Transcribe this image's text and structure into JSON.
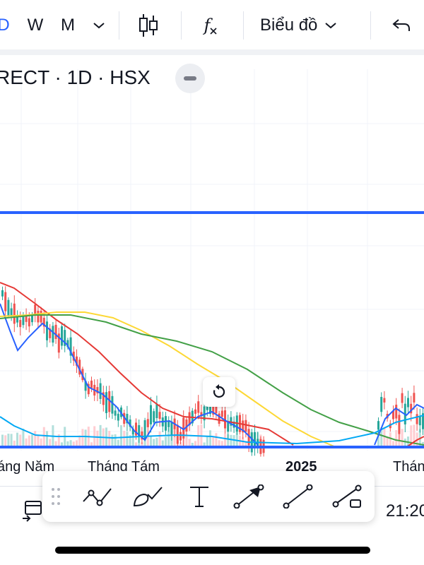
{
  "toolbar": {
    "interval_d": "D",
    "interval_w": "W",
    "interval_m": "M",
    "more_icon": "chevron-down-icon",
    "candles_icon": "candlestick-icon",
    "indicators_icon": "function-icon",
    "indicators_label": "f",
    "chart_type_label": "Biểu đồ",
    "undo_icon": "undo-icon",
    "active_color": "#2962ff"
  },
  "legend": {
    "symbol_text": "RECT · 1D · HSX"
  },
  "chart_data": {
    "type": "candlestick",
    "x_tick_labels": [
      "áng Năm",
      "Tháng Tám",
      "2025",
      "Thán"
    ],
    "horizontal_lines": [
      {
        "color": "#2962ff"
      },
      {
        "color": "#2962ff"
      }
    ],
    "series": [
      {
        "color": "#e53935",
        "kind": "moving-average"
      },
      {
        "color": "#2962ff",
        "kind": "moving-average"
      },
      {
        "color": "#fdd835",
        "kind": "moving-average"
      },
      {
        "color": "#43a047",
        "kind": "moving-average"
      },
      {
        "color": "#03a9f4",
        "kind": "volume-average"
      }
    ],
    "candle_up_color": "#26a69a",
    "candle_down_color": "#ef5350"
  },
  "bottom": {
    "clock": "21:20"
  },
  "drawing_tools": [
    {
      "icon": "trend-line-polyline-icon"
    },
    {
      "icon": "brush-icon"
    },
    {
      "icon": "text-icon"
    },
    {
      "icon": "arrow-icon"
    },
    {
      "icon": "ray-line-icon"
    },
    {
      "icon": "extended-line-icon"
    }
  ]
}
